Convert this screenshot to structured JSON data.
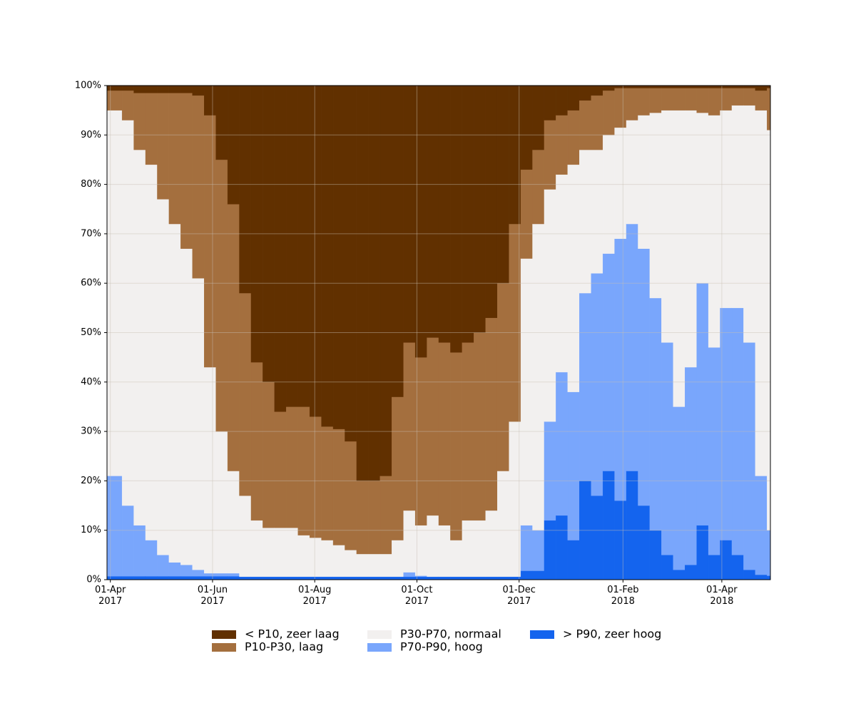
{
  "chart_data": {
    "type": "stacked-area",
    "x": [
      "2017-04-01",
      "2017-04-08",
      "2017-04-15",
      "2017-04-22",
      "2017-04-29",
      "2017-05-06",
      "2017-05-13",
      "2017-05-20",
      "2017-05-27",
      "2017-06-03",
      "2017-06-10",
      "2017-06-17",
      "2017-06-24",
      "2017-07-01",
      "2017-07-08",
      "2017-07-15",
      "2017-07-22",
      "2017-07-29",
      "2017-08-05",
      "2017-08-12",
      "2017-08-19",
      "2017-08-26",
      "2017-09-02",
      "2017-09-09",
      "2017-09-16",
      "2017-09-23",
      "2017-09-30",
      "2017-10-07",
      "2017-10-14",
      "2017-10-21",
      "2017-10-28",
      "2017-11-04",
      "2017-11-11",
      "2017-11-18",
      "2017-11-25",
      "2017-12-02",
      "2017-12-09",
      "2017-12-16",
      "2017-12-23",
      "2017-12-30",
      "2018-01-06",
      "2018-01-13",
      "2018-01-20",
      "2018-01-27",
      "2018-02-03",
      "2018-02-10",
      "2018-02-17",
      "2018-02-24",
      "2018-03-03",
      "2018-03-10",
      "2018-03-17",
      "2018-03-24",
      "2018-03-31",
      "2018-04-07",
      "2018-04-14",
      "2018-04-21",
      "2018-04-28"
    ],
    "series": [
      {
        "name": "> P90, zeer hoog",
        "color": "#1464ee",
        "values": [
          0.7,
          0.7,
          0.7,
          0.7,
          0.7,
          0.7,
          0.7,
          0.7,
          0.7,
          0.7,
          0.7,
          0.6,
          0.6,
          0.6,
          0.6,
          0.6,
          0.6,
          0.6,
          0.6,
          0.6,
          0.6,
          0.6,
          0.6,
          0.6,
          0.6,
          0.6,
          0.6,
          0.6,
          0.6,
          0.6,
          0.6,
          0.6,
          0.6,
          0.6,
          0.6,
          1.8,
          1.8,
          12,
          13,
          8,
          20,
          17,
          22,
          16,
          22,
          15,
          10,
          5,
          2,
          3,
          11,
          5,
          8,
          5,
          2,
          1,
          0.8
        ]
      },
      {
        "name": "P70-P90, hoog",
        "color": "#79a6fc",
        "values": [
          20.3,
          14.3,
          10.3,
          7.3,
          4.3,
          2.8,
          2.3,
          1.3,
          0.6,
          0.6,
          0.6,
          0,
          0,
          0,
          0,
          0,
          0,
          0,
          0,
          0,
          0,
          0,
          0,
          0,
          0,
          0.9,
          0.2,
          0,
          0,
          0,
          0,
          0,
          0,
          0,
          0,
          9.2,
          8.2,
          20,
          29,
          30,
          38,
          45,
          44,
          53,
          50,
          52,
          47,
          43,
          33,
          40,
          49,
          42,
          47,
          50,
          46,
          20,
          9.2
        ]
      },
      {
        "name": "P30-P70, normaal",
        "color": "#f2f0ef",
        "values": [
          74,
          78,
          76,
          76,
          72,
          68.5,
          64,
          59,
          41.7,
          28.7,
          20.7,
          16.4,
          11.4,
          9.9,
          9.9,
          9.9,
          8.4,
          7.9,
          7.4,
          6.4,
          5.4,
          4.6,
          4.6,
          4.6,
          7.4,
          12.5,
          10.2,
          12.4,
          10.4,
          7.4,
          11.4,
          11.4,
          13.4,
          21.4,
          31.4,
          54,
          62,
          47,
          40,
          46,
          29,
          25,
          24,
          22.5,
          21,
          27,
          37.5,
          47,
          60,
          52,
          34.5,
          47,
          40,
          41,
          48,
          74,
          81
        ]
      },
      {
        "name": "P10-P30, laag",
        "color": "#a46f3e",
        "values": [
          4,
          6,
          11.5,
          14.5,
          21.5,
          26.5,
          31.5,
          37,
          51,
          55,
          54,
          41,
          32,
          29.5,
          23.5,
          24.5,
          26,
          24.5,
          23,
          23.5,
          22,
          14.8,
          14.8,
          15.8,
          29,
          34,
          34,
          36,
          37,
          38,
          36,
          38,
          39,
          38,
          40,
          18,
          15,
          14,
          12,
          11,
          10,
          11,
          9,
          8,
          6.5,
          5.5,
          5,
          4.5,
          4.5,
          4.5,
          5,
          5.5,
          4.5,
          3.5,
          3.5,
          4,
          8.5
        ]
      },
      {
        "name": "< P10, zeer laag",
        "color": "#613000",
        "values": [
          1,
          1,
          1.5,
          1.5,
          1.5,
          1.5,
          1.5,
          2,
          6,
          15,
          24,
          42,
          56,
          60,
          66,
          65,
          65,
          67,
          69,
          69.5,
          72,
          80,
          80,
          79,
          63,
          52,
          55,
          51,
          52,
          54,
          52,
          50,
          47,
          40,
          28,
          17,
          13,
          7,
          6,
          5,
          3,
          2,
          1,
          0.5,
          0.5,
          0.5,
          0.5,
          0.5,
          0.5,
          0.5,
          0.5,
          0.5,
          0.5,
          0.5,
          0.5,
          1,
          0.5
        ]
      }
    ],
    "xlim": [
      "2017-03-30",
      "2018-04-30"
    ],
    "xticks": [
      {
        "value": "2017-04-01",
        "label": "01-Apr\n2017"
      },
      {
        "value": "2017-06-01",
        "label": "01-Jun\n2017"
      },
      {
        "value": "2017-08-01",
        "label": "01-Aug\n2017"
      },
      {
        "value": "2017-10-01",
        "label": "01-Oct\n2017"
      },
      {
        "value": "2017-12-01",
        "label": "01-Dec\n2017"
      },
      {
        "value": "2018-02-01",
        "label": "01-Feb\n2018"
      },
      {
        "value": "2018-04-01",
        "label": "01-Apr\n2018"
      }
    ],
    "ylim": [
      0,
      100
    ],
    "yticks": [
      {
        "value": 0,
        "label": "0%"
      },
      {
        "value": 10,
        "label": "10%"
      },
      {
        "value": 20,
        "label": "20%"
      },
      {
        "value": 30,
        "label": "30%"
      },
      {
        "value": 40,
        "label": "40%"
      },
      {
        "value": 50,
        "label": "50%"
      },
      {
        "value": 60,
        "label": "60%"
      },
      {
        "value": 70,
        "label": "70%"
      },
      {
        "value": 80,
        "label": "80%"
      },
      {
        "value": 90,
        "label": "90%"
      },
      {
        "value": 100,
        "label": "100%"
      }
    ],
    "grid": true,
    "legend": "bottom"
  }
}
